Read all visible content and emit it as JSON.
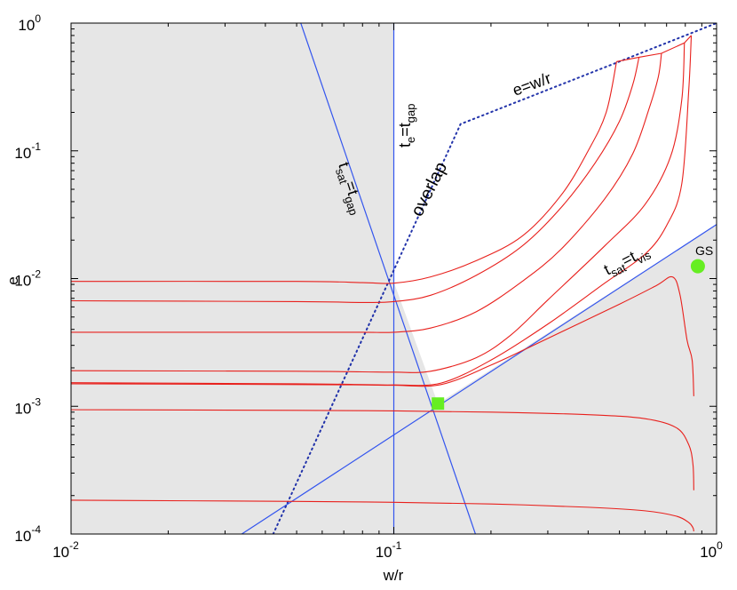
{
  "chart_data": {
    "type": "line",
    "xlabel": "w/r",
    "ylabel": "e",
    "xscale": "log",
    "yscale": "log",
    "xlim": [
      0.01,
      1
    ],
    "ylim": [
      0.0001,
      1
    ],
    "x_ticks": [
      {
        "value": 0.01,
        "base": "10",
        "exp": "-2"
      },
      {
        "value": 0.1,
        "base": "10",
        "exp": "-1"
      },
      {
        "value": 1,
        "base": "10",
        "exp": "0"
      }
    ],
    "y_ticks": [
      {
        "value": 0.0001,
        "base": "10",
        "exp": "-4"
      },
      {
        "value": 0.001,
        "base": "10",
        "exp": "-3"
      },
      {
        "value": 0.01,
        "base": "10",
        "exp": "-2"
      },
      {
        "value": 0.1,
        "base": "10",
        "exp": "-1"
      },
      {
        "value": 1,
        "base": "10",
        "exp": "0"
      }
    ],
    "grid": false,
    "colors": {
      "shade": "#e6e6e6",
      "boundary": "#3355ee",
      "track": "#e8201c",
      "marker": "#66ee22",
      "ew_line": "#2233aa"
    },
    "shaded_region": {
      "description_points": [
        [
          0.01,
          0.0001
        ],
        [
          0.01,
          1
        ],
        [
          0.1,
          1
        ],
        [
          0.1,
          0.0094
        ],
        [
          0.137,
          0.00105
        ],
        [
          1,
          0.0265
        ],
        [
          1,
          0.0001
        ]
      ]
    },
    "lines": [
      {
        "id": "t_sat_gap",
        "style": "solid",
        "color_key": "boundary",
        "points": [
          [
            0.0515,
            1
          ],
          [
            0.179,
            0.0001
          ]
        ]
      },
      {
        "id": "t_e_gap",
        "style": "solid",
        "color_key": "boundary",
        "points": [
          [
            0.1,
            1
          ],
          [
            0.1,
            0.0001
          ]
        ]
      },
      {
        "id": "t_sat_vis",
        "style": "solid",
        "color_key": "boundary",
        "points": [
          [
            0.0338,
            0.0001
          ],
          [
            1,
            0.0265
          ]
        ]
      },
      {
        "id": "e_wr",
        "style": "dotted",
        "color_key": "ew_line",
        "points": [
          [
            0.0423,
            0.0001
          ],
          [
            0.161,
            0.162
          ],
          [
            0.47,
            0.47
          ],
          [
            1,
            1
          ]
        ]
      }
    ],
    "tracks": [
      {
        "points": [
          [
            0.01,
            0.0095
          ],
          [
            0.05,
            0.0095
          ],
          [
            0.08,
            0.0093
          ],
          [
            0.1,
            0.0092
          ],
          [
            0.13,
            0.0103
          ],
          [
            0.18,
            0.0138
          ],
          [
            0.25,
            0.0215
          ],
          [
            0.33,
            0.045
          ],
          [
            0.4,
            0.1
          ],
          [
            0.455,
            0.2
          ],
          [
            0.49,
            0.5
          ]
        ]
      },
      {
        "points": [
          [
            0.01,
            0.0067
          ],
          [
            0.05,
            0.0066
          ],
          [
            0.08,
            0.0065
          ],
          [
            0.1,
            0.0066
          ],
          [
            0.13,
            0.0074
          ],
          [
            0.18,
            0.0106
          ],
          [
            0.25,
            0.018
          ],
          [
            0.33,
            0.036
          ],
          [
            0.42,
            0.08
          ],
          [
            0.5,
            0.17
          ],
          [
            0.55,
            0.33
          ],
          [
            0.575,
            0.54
          ]
        ]
      },
      {
        "points": [
          [
            0.01,
            0.0038
          ],
          [
            0.05,
            0.0038
          ],
          [
            0.08,
            0.0038
          ],
          [
            0.1,
            0.0038
          ],
          [
            0.13,
            0.0041
          ],
          [
            0.18,
            0.0055
          ],
          [
            0.25,
            0.0095
          ],
          [
            0.33,
            0.017
          ],
          [
            0.45,
            0.042
          ],
          [
            0.55,
            0.095
          ],
          [
            0.62,
            0.22
          ],
          [
            0.66,
            0.38
          ],
          [
            0.675,
            0.58
          ]
        ]
      },
      {
        "points": [
          [
            0.01,
            0.0019
          ],
          [
            0.05,
            0.00188
          ],
          [
            0.08,
            0.00186
          ],
          [
            0.1,
            0.00185
          ],
          [
            0.13,
            0.00188
          ],
          [
            0.18,
            0.0024
          ],
          [
            0.23,
            0.0036
          ],
          [
            0.3,
            0.0068
          ],
          [
            0.45,
            0.018
          ],
          [
            0.6,
            0.038
          ],
          [
            0.72,
            0.09
          ],
          [
            0.78,
            0.25
          ],
          [
            0.795,
            0.7
          ]
        ]
      },
      {
        "points": [
          [
            0.01,
            0.0015
          ],
          [
            0.05,
            0.00148
          ],
          [
            0.08,
            0.00147
          ],
          [
            0.1,
            0.00146
          ],
          [
            0.14,
            0.00148
          ],
          [
            0.2,
            0.0021
          ],
          [
            0.3,
            0.0034
          ],
          [
            0.5,
            0.0063
          ],
          [
            0.65,
            0.0088
          ],
          [
            0.73,
            0.0103
          ],
          [
            0.77,
            0.0075
          ],
          [
            0.81,
            0.0033
          ],
          [
            0.84,
            0.0023
          ],
          [
            0.85,
            0.0012
          ]
        ]
      },
      {
        "points": [
          [
            0.01,
            0.00153
          ],
          [
            0.05,
            0.0015
          ],
          [
            0.08,
            0.00148
          ],
          [
            0.1,
            0.00147
          ],
          [
            0.14,
            0.00152
          ],
          [
            0.2,
            0.0023
          ],
          [
            0.3,
            0.0044
          ],
          [
            0.45,
            0.0092
          ],
          [
            0.6,
            0.0155
          ],
          [
            0.7,
            0.026
          ],
          [
            0.78,
            0.055
          ],
          [
            0.82,
            0.3
          ],
          [
            0.835,
            0.8
          ]
        ]
      },
      {
        "points": [
          [
            0.01,
            0.00094
          ],
          [
            0.05,
            0.00093
          ],
          [
            0.1,
            0.00092
          ],
          [
            0.2,
            0.0009
          ],
          [
            0.4,
            0.00086
          ],
          [
            0.6,
            0.0008
          ],
          [
            0.75,
            0.00068
          ],
          [
            0.82,
            0.0005
          ],
          [
            0.845,
            0.00035
          ],
          [
            0.85,
            0.00022
          ]
        ]
      },
      {
        "points": [
          [
            0.01,
            0.000184
          ],
          [
            0.05,
            0.00018
          ],
          [
            0.1,
            0.000177
          ],
          [
            0.2,
            0.000172
          ],
          [
            0.4,
            0.000162
          ],
          [
            0.6,
            0.000152
          ],
          [
            0.75,
            0.000138
          ],
          [
            0.82,
            0.000123
          ],
          [
            0.845,
            0.000112
          ],
          [
            0.85,
            0.000105
          ]
        ]
      }
    ],
    "markers": [
      {
        "id": "square",
        "shape": "square",
        "x": 0.137,
        "y": 0.00105
      },
      {
        "id": "gs",
        "shape": "circle",
        "x": 0.875,
        "y": 0.0125,
        "label": "GS"
      }
    ],
    "annotations": {
      "ewr": "e=w/r",
      "overlap": "overlap",
      "te_gap": {
        "t": "t",
        "e": "e",
        "eq": "=t",
        "gap": "gap"
      },
      "tsat_gap": {
        "t": "t",
        "sat": "sat",
        "eq": "=t",
        "gap": "gap"
      },
      "tsat_vis": {
        "t": "t",
        "sat": "sat",
        "eq": "=t",
        "vis": "vis"
      },
      "gs": "GS"
    }
  }
}
